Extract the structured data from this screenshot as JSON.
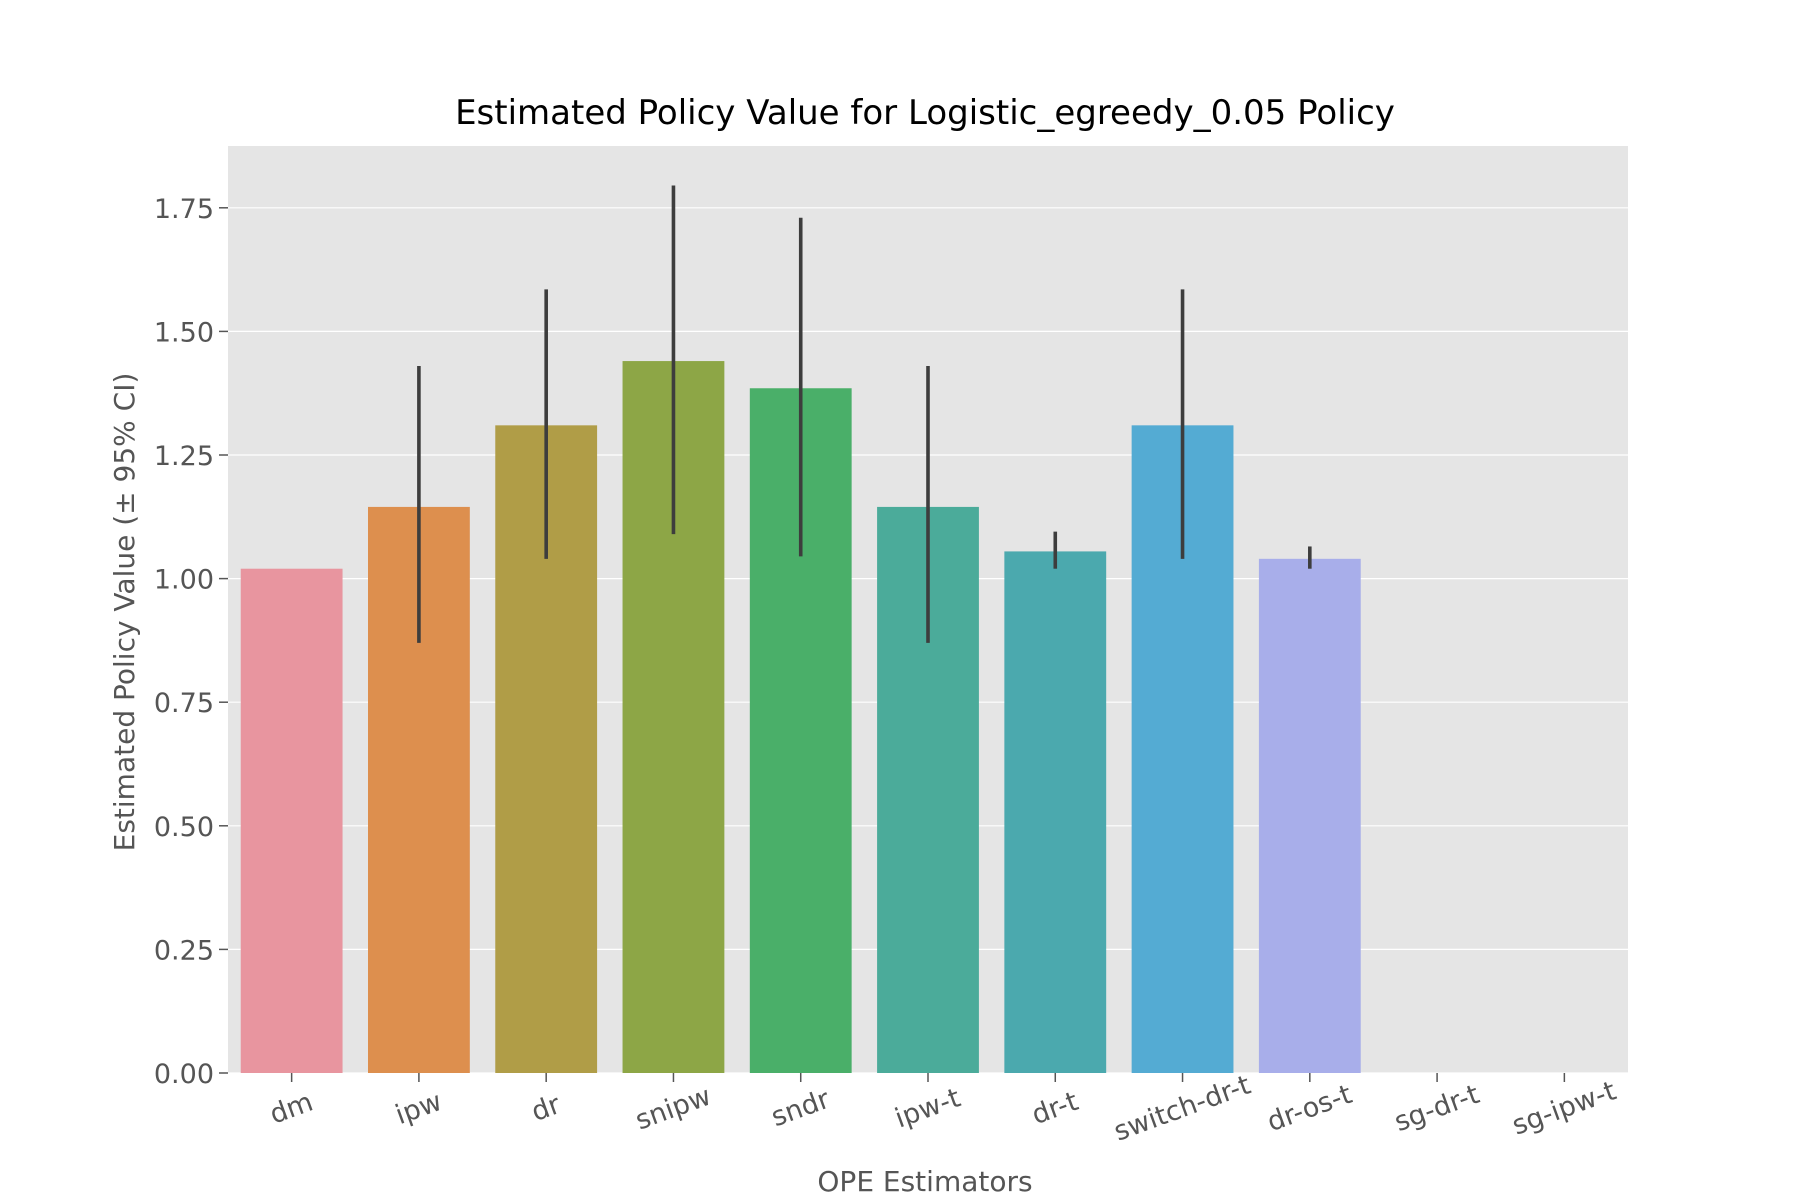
{
  "chart_data": {
    "type": "bar",
    "title": "Estimated Policy Value for Logistic_egreedy_0.05 Policy",
    "xlabel": "OPE Estimators",
    "ylabel": "Estimated Policy Value (± 95% CI)",
    "categories": [
      "dm",
      "ipw",
      "dr",
      "snipw",
      "sndr",
      "ipw-t",
      "dr-t",
      "switch-dr-t",
      "dr-os-t",
      "sg-dr-t",
      "sg-ipw-t"
    ],
    "values": [
      1.02,
      1.145,
      1.31,
      1.44,
      1.385,
      1.145,
      1.055,
      1.31,
      1.04,
      null,
      null
    ],
    "ci_low": [
      null,
      0.87,
      1.04,
      1.09,
      1.045,
      0.87,
      1.02,
      1.04,
      1.02,
      null,
      null
    ],
    "ci_high": [
      null,
      1.43,
      1.585,
      1.795,
      1.73,
      1.43,
      1.095,
      1.585,
      1.065,
      null,
      null
    ],
    "colors": [
      "#e8959f",
      "#dd8f4e",
      "#b09d47",
      "#8da646",
      "#4aaf69",
      "#4bab9a",
      "#4ba9ae",
      "#54abd3",
      "#a8aeea",
      "#c79be8",
      "#e68fcc"
    ],
    "ylim": [
      0,
      1.875
    ],
    "yticks": [
      "0.00",
      "0.25",
      "0.50",
      "0.75",
      "1.00",
      "1.25",
      "1.50",
      "1.75"
    ],
    "grid": true,
    "background": "#e5e5e5",
    "grid_color": "#ffffff",
    "errorbar_color": "#3d3d3d"
  }
}
